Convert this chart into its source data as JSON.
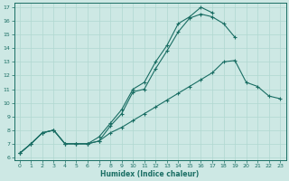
{
  "xlabel": "Humidex (Indice chaleur)",
  "background_color": "#cde8e4",
  "grid_color": "#b0d8d0",
  "line_color": "#1a6e64",
  "xlim": [
    -0.5,
    23.5
  ],
  "ylim": [
    5.8,
    17.3
  ],
  "xticks": [
    0,
    1,
    2,
    3,
    4,
    5,
    6,
    7,
    8,
    9,
    10,
    11,
    12,
    13,
    14,
    15,
    16,
    17,
    18,
    19,
    20,
    21,
    22,
    23
  ],
  "yticks": [
    6,
    7,
    8,
    9,
    10,
    11,
    12,
    13,
    14,
    15,
    16,
    17
  ],
  "line1_x": [
    0,
    1,
    2,
    3,
    4,
    5,
    6,
    7,
    8,
    9,
    10,
    11,
    12,
    13,
    14,
    15,
    16,
    17,
    18,
    19
  ],
  "line1_y": [
    6.3,
    7.0,
    7.8,
    8.0,
    7.0,
    7.0,
    7.0,
    7.2,
    8.3,
    9.2,
    10.8,
    11.0,
    12.5,
    13.8,
    15.2,
    16.2,
    16.5,
    16.3,
    15.8,
    14.8
  ],
  "line2_x": [
    0,
    1,
    2,
    3,
    4,
    5,
    6,
    7,
    8,
    9,
    10,
    11,
    12,
    13,
    14,
    15,
    16,
    17
  ],
  "line2_y": [
    6.3,
    7.0,
    7.8,
    8.0,
    7.0,
    7.0,
    7.0,
    7.5,
    8.5,
    9.5,
    11.0,
    11.5,
    13.0,
    14.2,
    15.8,
    16.3,
    17.0,
    16.6
  ],
  "line3_x": [
    0,
    1,
    2,
    3,
    4,
    5,
    6,
    7,
    8,
    9,
    10,
    11,
    12,
    13,
    14,
    15,
    16,
    17,
    18,
    19,
    20,
    21,
    22,
    23
  ],
  "line3_y": [
    6.3,
    7.0,
    7.8,
    8.0,
    7.0,
    7.0,
    7.0,
    7.2,
    7.8,
    8.2,
    8.7,
    9.2,
    9.7,
    10.2,
    10.7,
    11.2,
    11.7,
    12.2,
    13.0,
    13.1,
    11.5,
    11.2,
    10.5,
    10.3
  ]
}
